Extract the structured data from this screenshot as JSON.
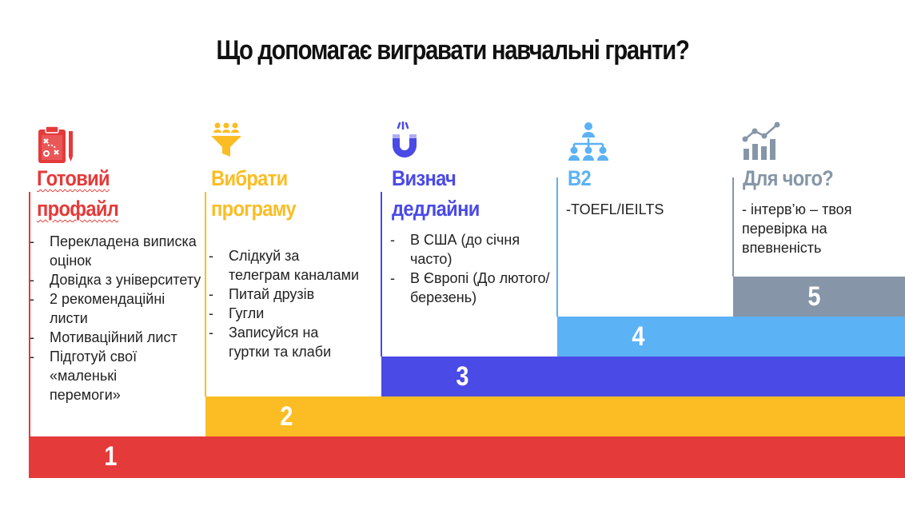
{
  "title": "Що допомагає вигравати навчальні гранти?",
  "colors": {
    "red": "#e53a3a",
    "yellow": "#fbbd23",
    "blue": "#4a4ae6",
    "light_blue": "#5bb2f5",
    "gray": "#8696a8"
  },
  "steps": [
    {
      "number": "1",
      "title_lines": [
        "Готовий",
        "профайл"
      ],
      "icon": "clipboard-strategy-icon",
      "items": [
        "Перекладена виписка оцінок",
        "Довідка з університету",
        "2 рекомендаційні листи",
        "Мотиваційний лист",
        "Підготуй свої «маленькі перемоги»"
      ]
    },
    {
      "number": "2",
      "title_lines": [
        "Вибрати",
        "програму"
      ],
      "icon": "funnel-people-icon",
      "items": [
        "Слідкуй за телеграм каналами",
        "Питай друзів",
        "Гугли",
        "Записуйся на гуртки та клаби"
      ]
    },
    {
      "number": "3",
      "title_lines": [
        "Визнач",
        "дедлайни"
      ],
      "icon": "magnet-icon",
      "items": [
        "В США (до січня часто)",
        "В Європі (До лютого/березень)"
      ]
    },
    {
      "number": "4",
      "title_lines": [
        "B2"
      ],
      "icon": "network-people-icon",
      "text": "-TOEFL/IEILTS"
    },
    {
      "number": "5",
      "title_lines": [
        "Для чого?"
      ],
      "icon": "growth-chart-icon",
      "text": "- інтерв’ю – твоя перевірка на впевненість"
    }
  ]
}
